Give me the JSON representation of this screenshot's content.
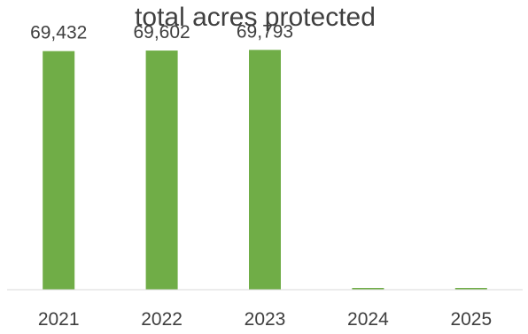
{
  "chart_data": {
    "type": "bar",
    "title": "total acres protected",
    "categories": [
      "2021",
      "2022",
      "2023",
      "2024",
      "2025"
    ],
    "values": [
      69432,
      69602,
      69793,
      0,
      0
    ],
    "data_labels": [
      "69,432",
      "69,602",
      "69,793",
      "",
      ""
    ],
    "xlabel": "",
    "ylabel": "",
    "ylim": [
      0,
      74000
    ],
    "grid": false,
    "legend": "none",
    "bar_color": "#70ad47",
    "axis_color": "#d9d9d9",
    "text_color": "#3f3f3f"
  }
}
